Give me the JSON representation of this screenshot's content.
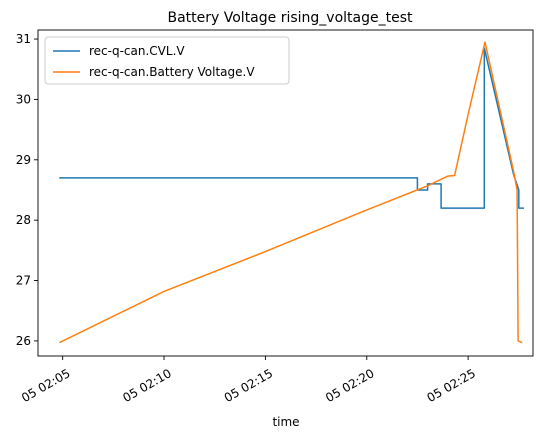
{
  "chart_data": {
    "type": "line",
    "title": "Battery Voltage rising_voltage_test",
    "xlabel": "time",
    "ylabel": "",
    "xlim": [
      "05 02:03:47",
      "05 02:28:12"
    ],
    "ylim": [
      25.75,
      31.15
    ],
    "x_ticks": [
      {
        "t": "05 02:05:00",
        "label": "05 02:05"
      },
      {
        "t": "05 02:10:00",
        "label": "05 02:10"
      },
      {
        "t": "05 02:15:00",
        "label": "05 02:15"
      },
      {
        "t": "05 02:20:00",
        "label": "05 02:20"
      },
      {
        "t": "05 02:25:00",
        "label": "05 02:25"
      }
    ],
    "y_ticks": [
      26,
      27,
      28,
      29,
      30,
      31
    ],
    "legend_position": "top-left",
    "series": [
      {
        "name": "rec-q-can.CVL.V",
        "color": "#1f77b4",
        "step": true,
        "points": [
          [
            "05 02:04:50",
            28.7
          ],
          [
            "05 02:22:30",
            28.7
          ],
          [
            "05 02:22:30",
            28.5
          ],
          [
            "05 02:23:00",
            28.5
          ],
          [
            "05 02:23:00",
            28.6
          ],
          [
            "05 02:23:40",
            28.6
          ],
          [
            "05 02:23:40",
            28.2
          ],
          [
            "05 02:25:48",
            28.2
          ],
          [
            "05 02:25:48",
            30.85
          ],
          [
            "05 02:27:15",
            28.75
          ],
          [
            "05 02:27:30",
            28.5
          ],
          [
            "05 02:27:30",
            28.2
          ],
          [
            "05 02:27:45",
            28.2
          ]
        ]
      },
      {
        "name": "rec-q-can.Battery Voltage.V",
        "color": "#ff7f0e",
        "step": false,
        "points": [
          [
            "05 02:04:50",
            25.97
          ],
          [
            "05 02:10:00",
            26.82
          ],
          [
            "05 02:15:00",
            27.48
          ],
          [
            "05 02:20:00",
            28.17
          ],
          [
            "05 02:23:00",
            28.57
          ],
          [
            "05 02:24:00",
            28.73
          ],
          [
            "05 02:24:20",
            28.74
          ],
          [
            "05 02:25:00",
            29.75
          ],
          [
            "05 02:25:50",
            30.95
          ],
          [
            "05 02:27:15",
            28.8
          ],
          [
            "05 02:27:25",
            28.5
          ],
          [
            "05 02:27:28",
            26.0
          ],
          [
            "05 02:27:40",
            25.97
          ]
        ]
      }
    ]
  }
}
